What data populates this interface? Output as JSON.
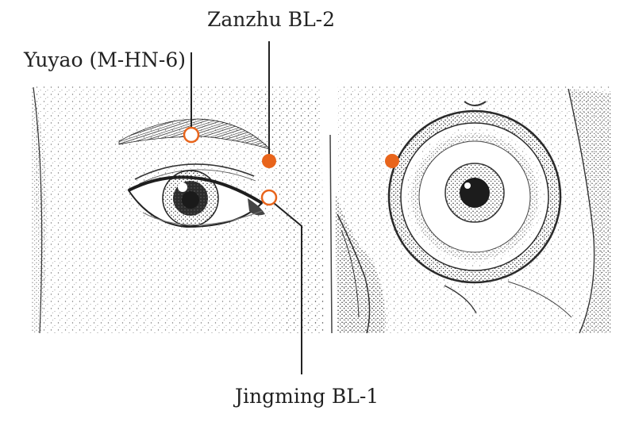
{
  "labels": {
    "zanzhu": "Zanzhu BL-2",
    "yuyao": "Yuyao (M-HN-6)",
    "jingming": "Jingming BL-1"
  },
  "colors": {
    "point_fill": "#e8641b",
    "point_outline": "#e8641b",
    "leader_line": "#222222",
    "ink": "#2a2a2a"
  },
  "points": [
    {
      "id": "zanzhu",
      "style": "filled"
    },
    {
      "id": "yuyao",
      "style": "hollow"
    },
    {
      "id": "jingming",
      "style": "hollow"
    },
    {
      "id": "skull-orbit-point",
      "style": "filled"
    }
  ]
}
